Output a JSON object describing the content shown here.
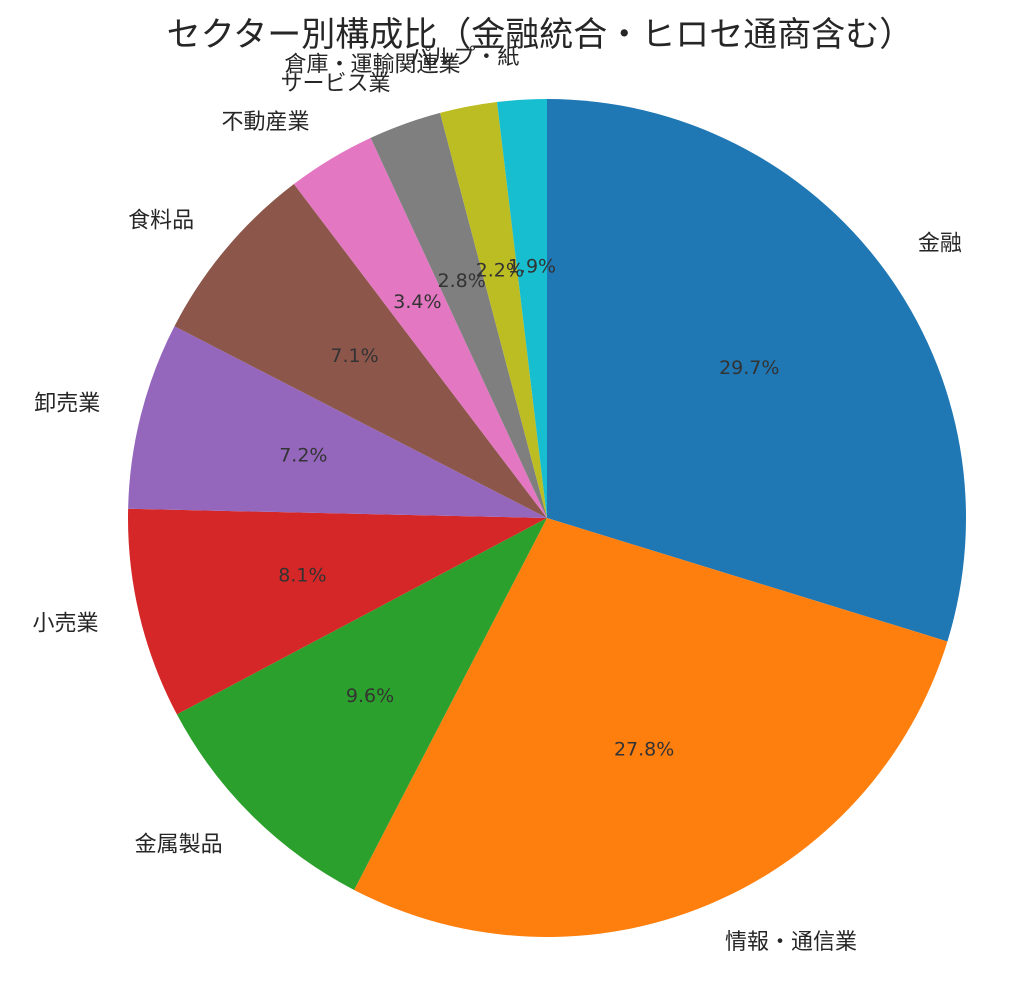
{
  "chart_data": {
    "type": "pie",
    "title": "セクター別構成比（金融統合・ヒロセ通商含む）",
    "start_angle_deg": 90,
    "direction": "clockwise",
    "categories": [
      "金融",
      "情報・通信業",
      "金属製品",
      "小売業",
      "卸売業",
      "食料品",
      "不動産業",
      "サービス業",
      "倉庫・運輸関連業",
      "パルプ・紙"
    ],
    "values": [
      29.7,
      27.8,
      9.6,
      8.1,
      7.2,
      7.1,
      3.4,
      2.8,
      2.2,
      1.9
    ],
    "value_labels": [
      "29.7%",
      "27.8%",
      "9.6%",
      "8.1%",
      "7.2%",
      "7.1%",
      "3.4%",
      "2.8%",
      "2.2%",
      "1.9%"
    ],
    "colors": [
      "#1f77b4",
      "#ff7f0e",
      "#2ca02c",
      "#d62728",
      "#9467bd",
      "#8c564b",
      "#e377c2",
      "#7f7f7f",
      "#bcbd22",
      "#17becf"
    ],
    "legend": "none"
  }
}
